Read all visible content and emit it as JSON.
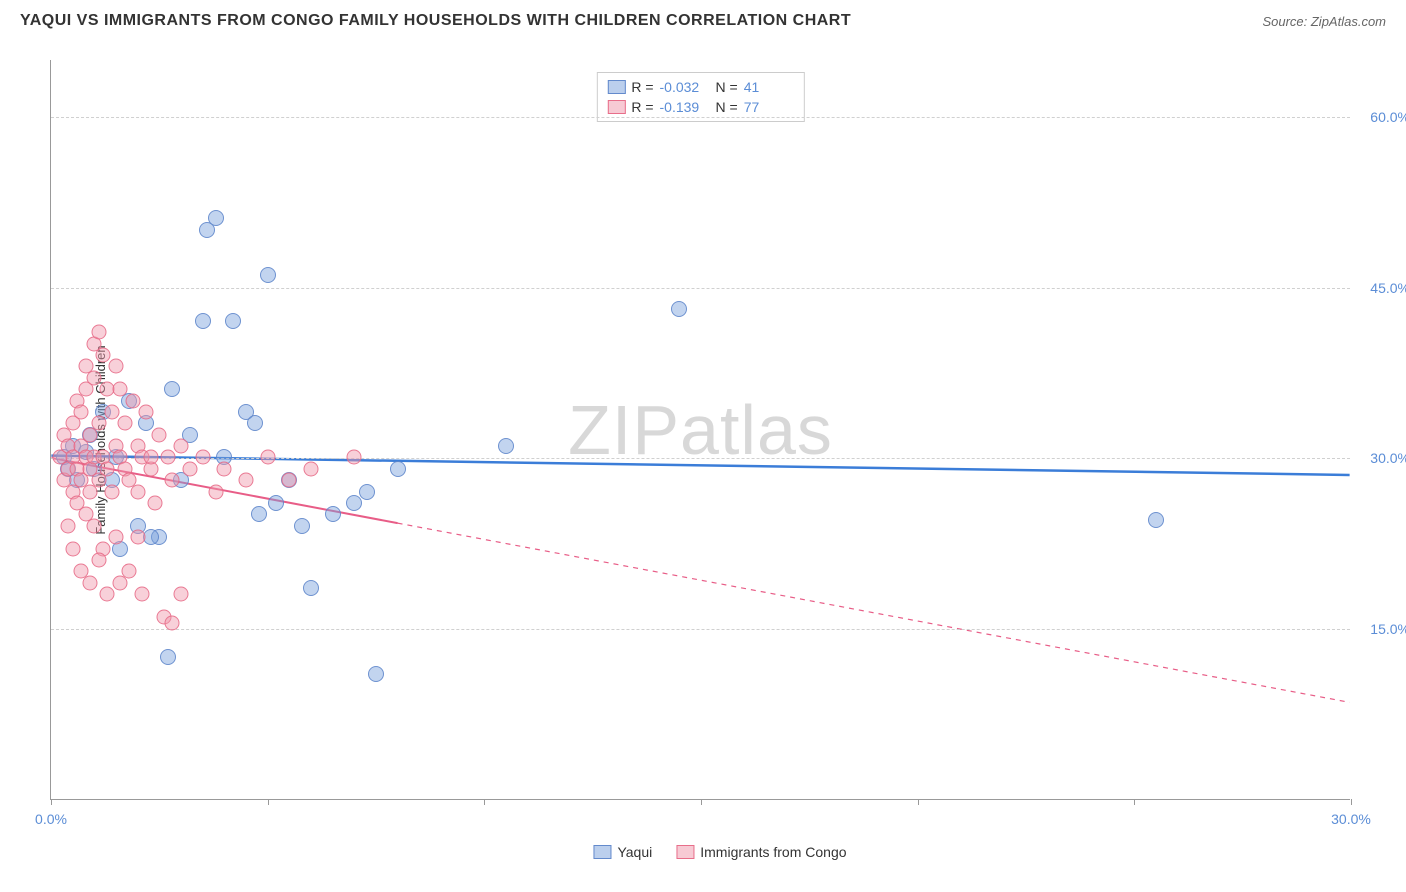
{
  "header": {
    "title": "YAQUI VS IMMIGRANTS FROM CONGO FAMILY HOUSEHOLDS WITH CHILDREN CORRELATION CHART",
    "source": "Source: ZipAtlas.com"
  },
  "chart": {
    "type": "scatter",
    "ylabel": "Family Households with Children",
    "watermark": "ZIPatlas",
    "xlim": [
      0,
      30
    ],
    "ylim": [
      0,
      65
    ],
    "x_ticks": [
      0,
      5,
      10,
      15,
      20,
      25,
      30
    ],
    "x_tick_labels": {
      "0": "0.0%",
      "30": "30.0%"
    },
    "y_gridlines": [
      15,
      30,
      45,
      60
    ],
    "y_tick_labels": {
      "15": "15.0%",
      "30": "30.0%",
      "45": "45.0%",
      "60": "60.0%"
    },
    "background_color": "#ffffff",
    "grid_color": "#d0d0d0",
    "series": [
      {
        "name": "Yaqui",
        "color_fill": "rgba(120,160,220,0.45)",
        "color_stroke": "rgba(90,130,200,0.8)",
        "marker_size": 16,
        "R": "-0.032",
        "N": "41",
        "trend": {
          "x1": 0,
          "y1": 30.2,
          "x2": 30,
          "y2": 28.5,
          "solid_to_x": 30,
          "color": "#3b7dd8",
          "width": 2.5
        },
        "points": [
          [
            0.3,
            30
          ],
          [
            0.5,
            31
          ],
          [
            0.4,
            29
          ],
          [
            0.6,
            28
          ],
          [
            0.8,
            30.5
          ],
          [
            0.9,
            32
          ],
          [
            1.0,
            29
          ],
          [
            1.2,
            34
          ],
          [
            1.4,
            28
          ],
          [
            1.5,
            30
          ],
          [
            1.8,
            35
          ],
          [
            2.0,
            24
          ],
          [
            2.2,
            33
          ],
          [
            2.5,
            23
          ],
          [
            2.7,
            12.5
          ],
          [
            2.8,
            36
          ],
          [
            3.0,
            28
          ],
          [
            3.2,
            32
          ],
          [
            3.5,
            42
          ],
          [
            3.6,
            50
          ],
          [
            3.8,
            51
          ],
          [
            4.0,
            30
          ],
          [
            4.2,
            42
          ],
          [
            4.5,
            34
          ],
          [
            4.7,
            33
          ],
          [
            4.8,
            25
          ],
          [
            5.0,
            46
          ],
          [
            5.2,
            26
          ],
          [
            5.5,
            28
          ],
          [
            5.8,
            24
          ],
          [
            6.0,
            18.5
          ],
          [
            6.5,
            25
          ],
          [
            7.0,
            26
          ],
          [
            7.3,
            27
          ],
          [
            7.5,
            11
          ],
          [
            8.0,
            29
          ],
          [
            10.5,
            31
          ],
          [
            14.5,
            43
          ],
          [
            25.5,
            24.5
          ],
          [
            2.3,
            23
          ],
          [
            1.6,
            22
          ]
        ]
      },
      {
        "name": "Immigrants from Congo",
        "color_fill": "rgba(240,150,170,0.45)",
        "color_stroke": "rgba(230,100,130,0.8)",
        "marker_size": 15,
        "R": "-0.139",
        "N": "77",
        "trend": {
          "x1": 0,
          "y1": 30.0,
          "x2": 30,
          "y2": 8.5,
          "solid_to_x": 8,
          "color": "#e85d87",
          "width": 2
        },
        "points": [
          [
            0.2,
            30
          ],
          [
            0.3,
            32
          ],
          [
            0.3,
            28
          ],
          [
            0.4,
            31
          ],
          [
            0.4,
            29
          ],
          [
            0.5,
            33
          ],
          [
            0.5,
            27
          ],
          [
            0.5,
            30
          ],
          [
            0.6,
            35
          ],
          [
            0.6,
            26
          ],
          [
            0.6,
            29
          ],
          [
            0.7,
            31
          ],
          [
            0.7,
            28
          ],
          [
            0.7,
            34
          ],
          [
            0.8,
            30
          ],
          [
            0.8,
            38
          ],
          [
            0.8,
            25
          ],
          [
            0.8,
            36
          ],
          [
            0.9,
            27
          ],
          [
            0.9,
            32
          ],
          [
            0.9,
            29
          ],
          [
            1.0,
            37
          ],
          [
            1.0,
            40
          ],
          [
            1.0,
            30
          ],
          [
            1.0,
            24
          ],
          [
            1.1,
            33
          ],
          [
            1.1,
            28
          ],
          [
            1.1,
            41
          ],
          [
            1.2,
            39
          ],
          [
            1.2,
            30
          ],
          [
            1.2,
            22
          ],
          [
            1.3,
            36
          ],
          [
            1.3,
            29
          ],
          [
            1.4,
            34
          ],
          [
            1.4,
            27
          ],
          [
            1.5,
            38
          ],
          [
            1.5,
            31
          ],
          [
            1.5,
            23
          ],
          [
            1.6,
            30
          ],
          [
            1.6,
            36
          ],
          [
            1.7,
            29
          ],
          [
            1.7,
            33
          ],
          [
            1.8,
            28
          ],
          [
            1.8,
            20
          ],
          [
            1.9,
            35
          ],
          [
            2.0,
            31
          ],
          [
            2.0,
            27
          ],
          [
            2.1,
            18
          ],
          [
            2.1,
            30
          ],
          [
            2.2,
            34
          ],
          [
            2.3,
            29
          ],
          [
            2.4,
            26
          ],
          [
            2.5,
            32
          ],
          [
            2.6,
            16
          ],
          [
            2.7,
            30
          ],
          [
            2.8,
            28
          ],
          [
            3.0,
            31
          ],
          [
            3.2,
            29
          ],
          [
            3.5,
            30
          ],
          [
            3.8,
            27
          ],
          [
            4.0,
            29
          ],
          [
            4.5,
            28
          ],
          [
            5.0,
            30
          ],
          [
            5.5,
            28
          ],
          [
            6.0,
            29
          ],
          [
            7.0,
            30
          ],
          [
            0.4,
            24
          ],
          [
            0.5,
            22
          ],
          [
            0.7,
            20
          ],
          [
            0.9,
            19
          ],
          [
            1.1,
            21
          ],
          [
            1.3,
            18
          ],
          [
            1.6,
            19
          ],
          [
            2.0,
            23
          ],
          [
            2.3,
            30
          ],
          [
            2.8,
            15.5
          ],
          [
            3.0,
            18
          ]
        ]
      }
    ],
    "legend": {
      "items": [
        {
          "label": "Yaqui",
          "swatch": "blue"
        },
        {
          "label": "Immigrants from Congo",
          "swatch": "pink"
        }
      ]
    }
  }
}
